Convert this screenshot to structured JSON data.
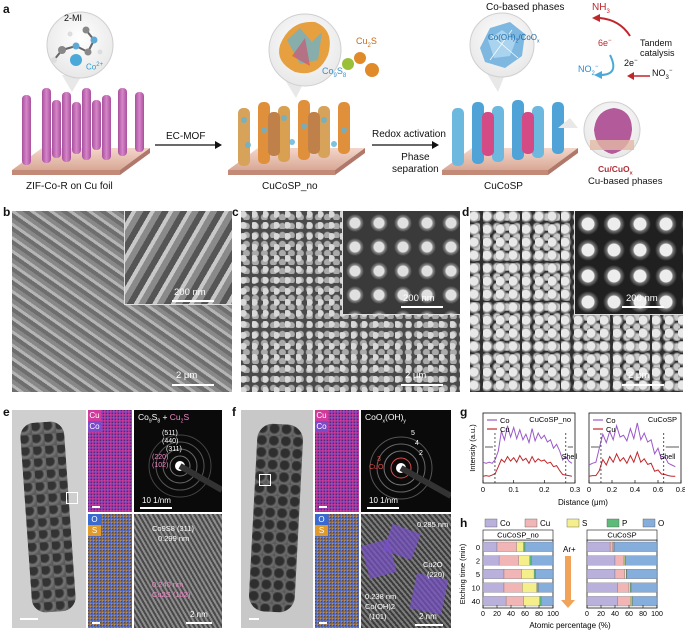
{
  "panel_labels": {
    "a": "a",
    "b": "b",
    "c": "c",
    "d": "d",
    "e": "e",
    "f": "f",
    "g": "g",
    "h": "h"
  },
  "panel_a": {
    "mi_label": "2-MI",
    "co_label": "Co",
    "co_sup": "2+",
    "cu2s_label": "Cu",
    "cu2s_sub": "2",
    "cu2s_tail": "S",
    "co9s8_label": "Co",
    "co9s8_sub1": "9",
    "co9s8_mid": "S",
    "co9s8_sub2": "8",
    "co_phases_title": "Co-based phases",
    "cooh_label": "Co(OH)",
    "cooh_sub": "2",
    "cooh_tail": "/CoO",
    "cooh_sub2": "x",
    "nh3": "NH",
    "nh3_sub": "3",
    "six_e": "6e",
    "six_e_sup": "−",
    "two_e": "2e",
    "two_e_sup": "−",
    "no2": "NO",
    "no2_sub": "2",
    "no2_sup": "−",
    "no3": "NO",
    "no3_sub": "3",
    "no3_sup": "−",
    "tandem": "Tandem catalysis",
    "arrow1": "EC-MOF",
    "arrow2": "Redox activation",
    "phase_sep_1": "Phase",
    "phase_sep_2": "separation",
    "cap1": "ZIF-Co-R on Cu foil",
    "cap2": "CuCoSP_no",
    "cap3": "CuCoSP",
    "cu_cuox": "Cu/CuO",
    "cu_cuox_sub": "x",
    "cu_phases": "Cu-based phases"
  },
  "sem_panels": {
    "b": {
      "inset": "200 nm",
      "main": "2 μm"
    },
    "c": {
      "inset": "200 nm",
      "main": "2 μm"
    },
    "d": {
      "inset": "200 nm",
      "main": "2 μm"
    }
  },
  "panel_e": {
    "map_top_1": "Cu",
    "map_top_2": "Co",
    "map_bot_1": "O",
    "map_bot_2": "S",
    "saed_title_a": "Co",
    "saed_title_sub1": "9",
    "saed_title_b": "S",
    "saed_title_sub2": "8",
    "saed_title_c": " + ",
    "saed_title_d": "Cu",
    "saed_title_sub3": "2",
    "saed_title_e": "S",
    "ring1": "(511)",
    "ring2": "(440)",
    "ring3": "(311)",
    "ring4": "(220)",
    "ring5": "(102)",
    "saed_scale": "10 1/nm",
    "hr_lab1": "Co9S8 (311)",
    "hr_lab2": "0.299 nm",
    "hr_lab3": "0.240 nm",
    "hr_lab4": "Cu2S (102)",
    "hr_scale": "2 nm"
  },
  "panel_f": {
    "map_top_1": "Cu",
    "map_top_2": "Co",
    "map_bot_1": "O",
    "map_bot_2": "S",
    "saed_title": "CoO",
    "saed_sub1": "x",
    "saed_mid": "(OH)",
    "saed_sub2": "y",
    "ring1": "5",
    "ring2": "4",
    "ring3": "2",
    "ring4": "3",
    "ring_cuo": "CuO",
    "saed_scale": "10 1/nm",
    "hr_lab1": "0.285 nm",
    "hr_lab2": "Cu2O",
    "hr_lab3": "(220)",
    "hr_lab4": "0.238 nm",
    "hr_lab5": "Co(OH)2",
    "hr_lab6": "(101)",
    "hr_scale": "2 nm"
  },
  "chart_data": [
    {
      "type": "line",
      "title": "CuCoSP_no",
      "ylabel": "Intensity (a.u.)",
      "xlabel": "Distance (μm)",
      "xticks": [
        "0",
        "0.1",
        "0.2",
        "0.3"
      ],
      "xlim": [
        0,
        0.3
      ],
      "annotation": "Shell",
      "legend": [
        "Co",
        "Cu"
      ],
      "series": [
        {
          "name": "Co",
          "x": [
            0,
            0.01,
            0.02,
            0.03,
            0.04,
            0.05,
            0.06,
            0.07,
            0.08,
            0.09,
            0.1,
            0.11,
            0.12,
            0.13,
            0.14,
            0.15,
            0.16,
            0.17,
            0.18,
            0.19,
            0.2,
            0.21,
            0.22,
            0.23,
            0.24,
            0.25,
            0.26,
            0.27,
            0.28,
            0.29
          ],
          "values": [
            0.3,
            0.28,
            0.3,
            0.28,
            0.35,
            0.5,
            0.85,
            0.7,
            0.95,
            0.75,
            0.92,
            0.72,
            0.88,
            0.7,
            0.8,
            0.65,
            0.9,
            0.68,
            0.82,
            0.72,
            0.78,
            0.66,
            0.7,
            0.55,
            0.62,
            0.5,
            0.34,
            0.4,
            0.32,
            0.28
          ]
        },
        {
          "name": "Cu",
          "x": [
            0,
            0.01,
            0.02,
            0.03,
            0.04,
            0.05,
            0.06,
            0.07,
            0.08,
            0.09,
            0.1,
            0.11,
            0.12,
            0.13,
            0.14,
            0.15,
            0.16,
            0.17,
            0.18,
            0.19,
            0.2,
            0.21,
            0.22,
            0.23,
            0.24,
            0.25,
            0.26,
            0.27,
            0.28,
            0.29
          ],
          "values": [
            0.05,
            0.06,
            0.05,
            0.07,
            0.1,
            0.22,
            0.35,
            0.3,
            0.4,
            0.32,
            0.38,
            0.3,
            0.42,
            0.33,
            0.37,
            0.28,
            0.4,
            0.3,
            0.36,
            0.32,
            0.34,
            0.28,
            0.3,
            0.22,
            0.24,
            0.15,
            0.08,
            0.07,
            0.06,
            0.05
          ]
        }
      ]
    },
    {
      "type": "line",
      "title": "CuCoSP",
      "ylabel": "",
      "xlabel": "Distance (μm)",
      "xticks": [
        "0",
        "0.2",
        "0.4",
        "0.6",
        "0.8"
      ],
      "xlim": [
        0,
        0.8
      ],
      "annotation": "Shell",
      "legend": [
        "Co",
        "Cu"
      ],
      "series": [
        {
          "name": "Co",
          "x": [
            0,
            0.03,
            0.06,
            0.09,
            0.12,
            0.15,
            0.18,
            0.21,
            0.24,
            0.27,
            0.3,
            0.33,
            0.36,
            0.39,
            0.42,
            0.45,
            0.48,
            0.51,
            0.54,
            0.57,
            0.6,
            0.63,
            0.66,
            0.69,
            0.72,
            0.75
          ],
          "values": [
            0.25,
            0.28,
            0.3,
            0.55,
            0.8,
            0.65,
            0.85,
            0.7,
            0.95,
            0.75,
            0.78,
            0.68,
            0.9,
            0.72,
            1.0,
            0.7,
            0.82,
            0.66,
            0.7,
            0.45,
            0.55,
            0.35,
            0.4,
            0.28,
            0.25,
            0.22
          ]
        },
        {
          "name": "Cu",
          "x": [
            0,
            0.03,
            0.06,
            0.09,
            0.12,
            0.15,
            0.18,
            0.21,
            0.24,
            0.27,
            0.3,
            0.33,
            0.36,
            0.39,
            0.42,
            0.45,
            0.48,
            0.51,
            0.54,
            0.57,
            0.6,
            0.63,
            0.66,
            0.69,
            0.72,
            0.75
          ],
          "values": [
            0.05,
            0.06,
            0.06,
            0.15,
            0.35,
            0.25,
            0.4,
            0.3,
            0.45,
            0.32,
            0.38,
            0.28,
            0.42,
            0.3,
            0.48,
            0.3,
            0.36,
            0.26,
            0.28,
            0.14,
            0.16,
            0.09,
            0.08,
            0.06,
            0.05,
            0.05
          ]
        }
      ]
    },
    {
      "type": "bar",
      "orientation": "horizontal-stacked",
      "title": "CuCoSP_no",
      "ylabel": "Etching time (min)",
      "xlabel": "Atomic percentage (%)",
      "categories": [
        "0",
        "2",
        "5",
        "10",
        "40"
      ],
      "xticks": [
        "0",
        "20",
        "40",
        "60",
        "80",
        "100"
      ],
      "legend": [
        "Co",
        "Cu",
        "S",
        "P",
        "O"
      ],
      "annotation": "Ar+",
      "series": [
        {
          "name": "Co",
          "values": [
            20,
            23,
            30,
            30,
            33
          ]
        },
        {
          "name": "Cu",
          "values": [
            28,
            28,
            25,
            26,
            25
          ]
        },
        {
          "name": "S",
          "values": [
            10,
            16,
            18,
            21,
            23
          ]
        },
        {
          "name": "P",
          "values": [
            2,
            2,
            2,
            2,
            2
          ]
        },
        {
          "name": "O",
          "values": [
            40,
            31,
            25,
            21,
            17
          ]
        }
      ]
    },
    {
      "type": "bar",
      "orientation": "horizontal-stacked",
      "title": "CuCoSP",
      "ylabel": "",
      "xlabel": "Atomic percentage (%)",
      "categories": [
        "0",
        "2",
        "5",
        "10",
        "40"
      ],
      "xticks": [
        "0",
        "20",
        "40",
        "60",
        "80",
        "100"
      ],
      "series": [
        {
          "name": "Co",
          "values": [
            33,
            40,
            40,
            44,
            44
          ]
        },
        {
          "name": "Cu",
          "values": [
            4,
            12,
            14,
            16,
            18
          ]
        },
        {
          "name": "S",
          "values": [
            1,
            2,
            2,
            2,
            2
          ]
        },
        {
          "name": "P",
          "values": [
            1,
            1,
            1,
            1,
            1
          ]
        },
        {
          "name": "O",
          "values": [
            61,
            45,
            43,
            37,
            35
          ]
        }
      ]
    }
  ],
  "colors": {
    "co_line": "#9b59c8",
    "cu_line": "#c0272d",
    "bar_co": "#b9b0dc",
    "bar_cu": "#f2b5b5",
    "bar_s": "#f4ef8a",
    "bar_p": "#5dbb7a",
    "bar_o": "#86aedc",
    "pillar": "#c86bb8",
    "foil": "#e9c6b8"
  }
}
